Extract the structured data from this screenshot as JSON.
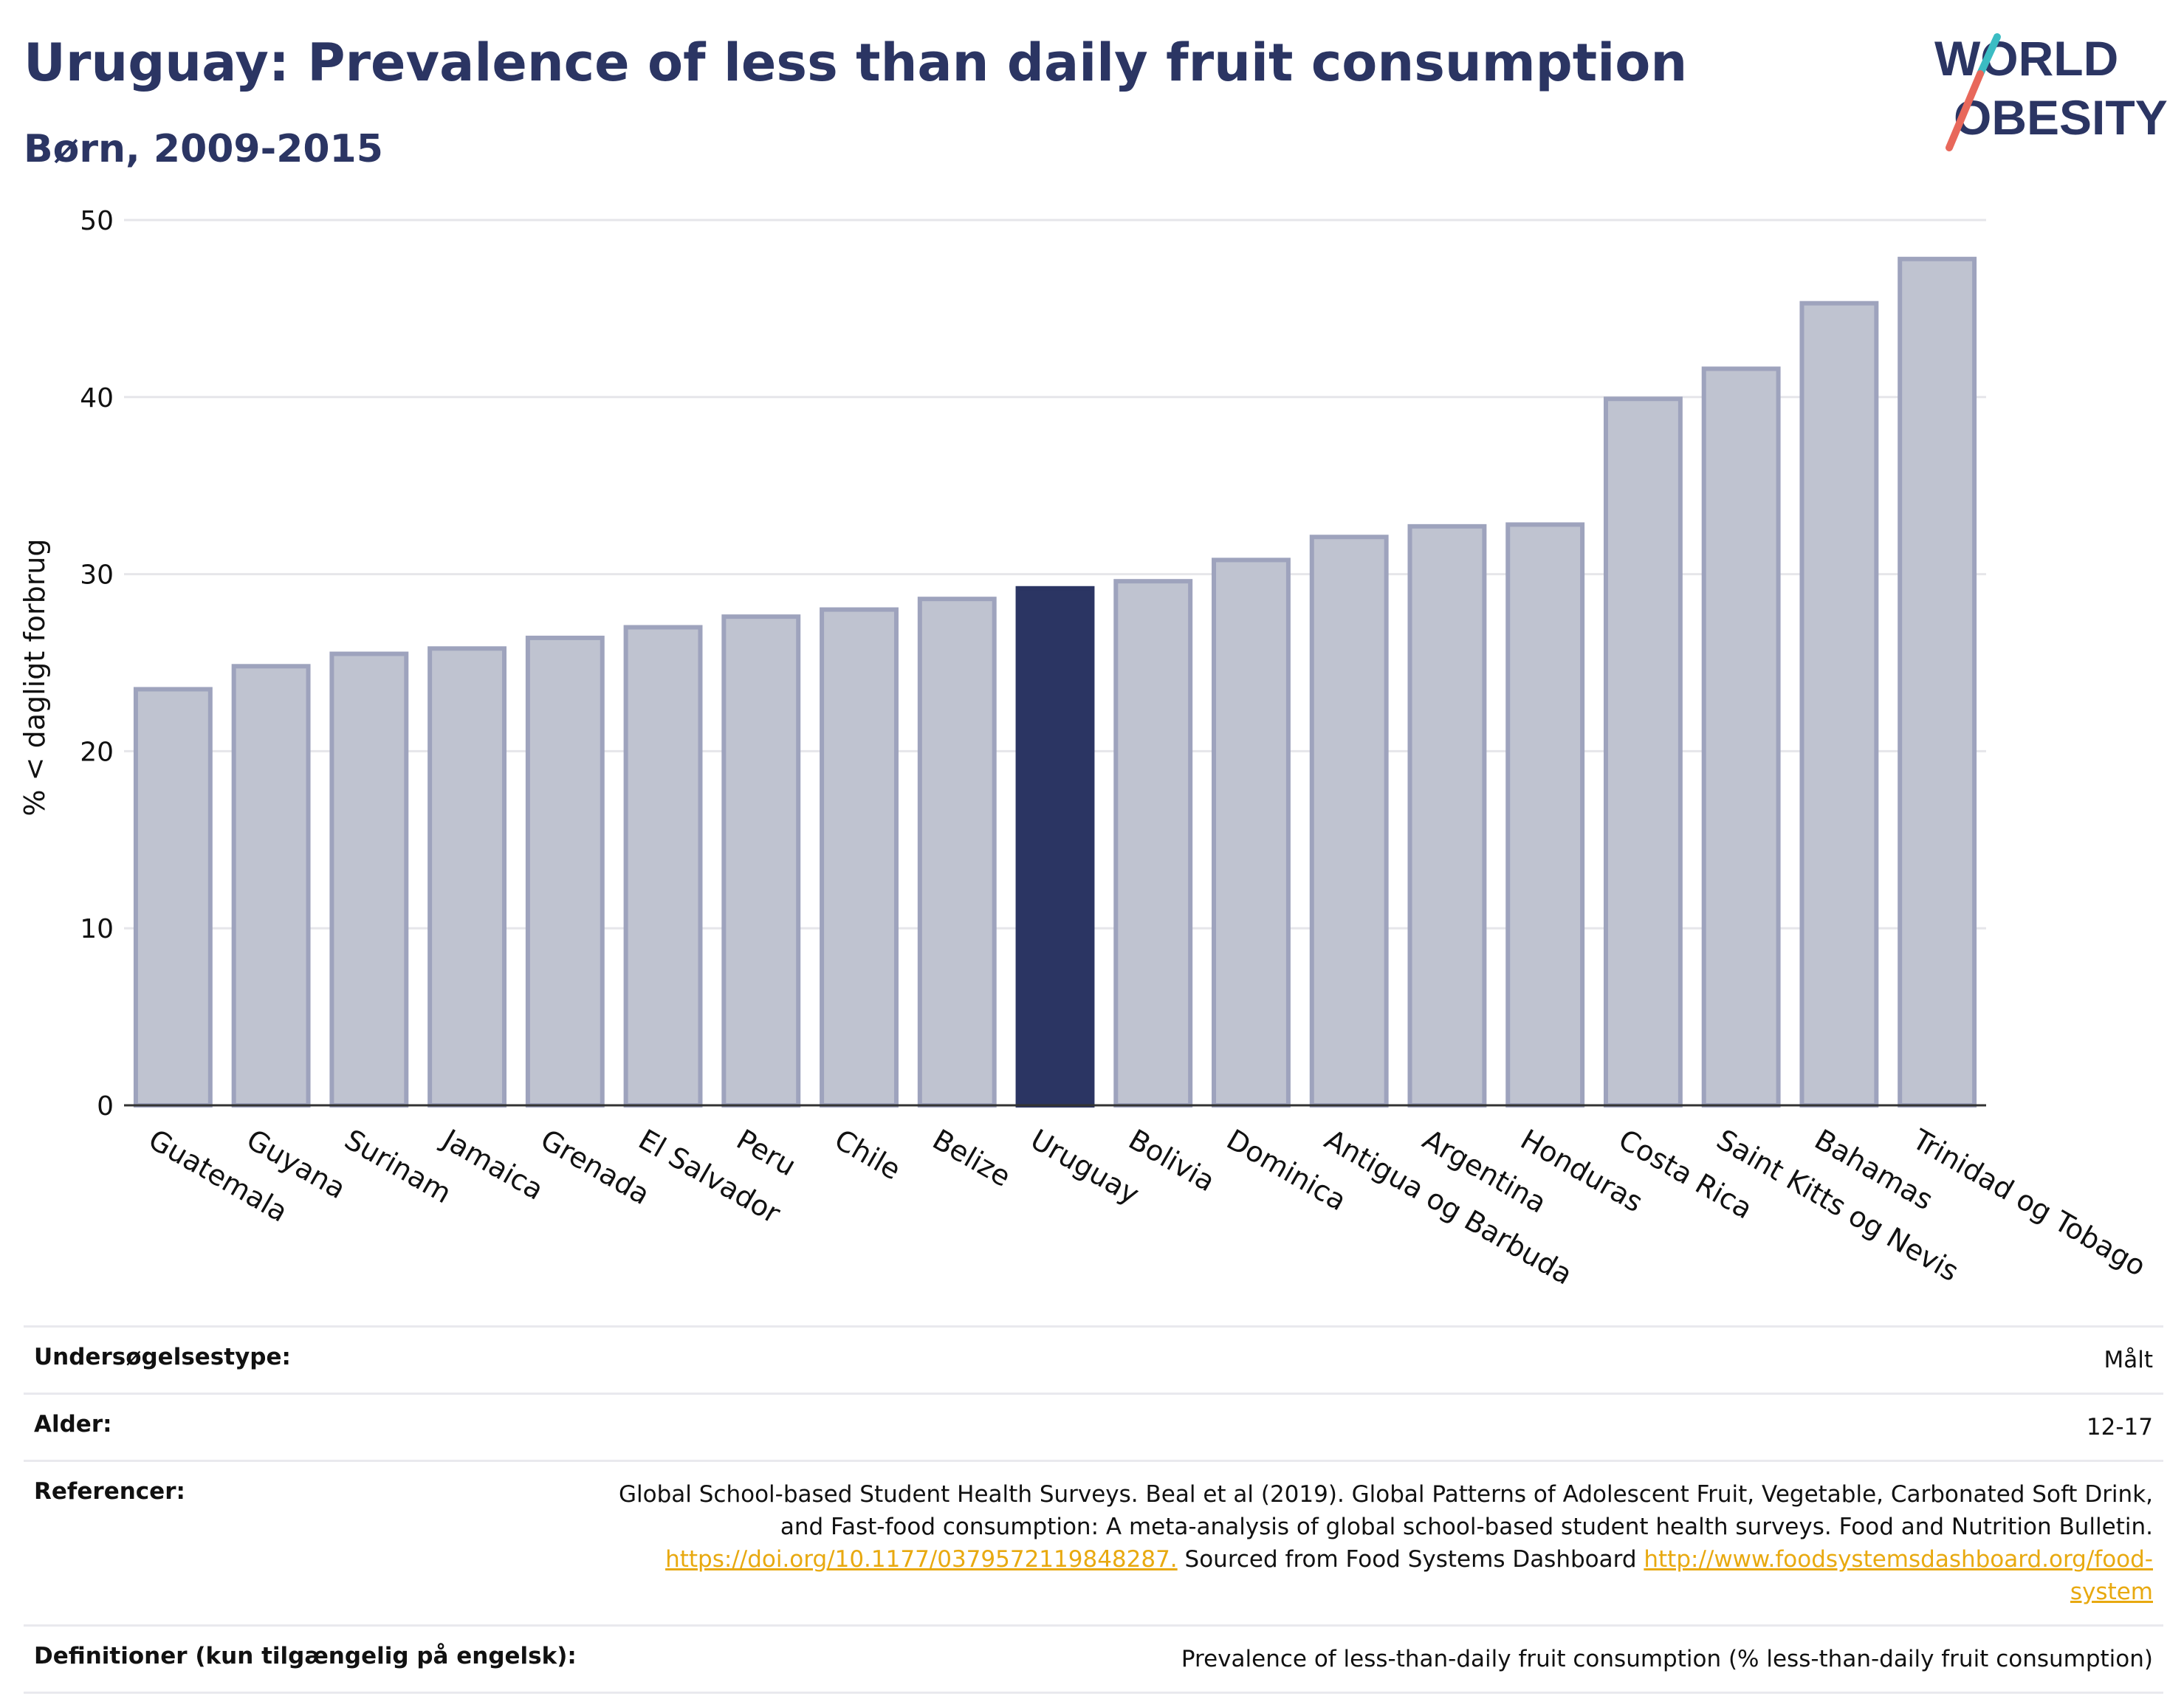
{
  "header": {
    "title": "Uruguay: Prevalence of less than daily fruit consumption",
    "subtitle": "Børn, 2009-2015"
  },
  "logo": {
    "line1": "WORLD",
    "line2": "OBESITY"
  },
  "chart_data": {
    "type": "bar",
    "ylabel": "% < dagligt forbrug",
    "xlabel": "",
    "ylim": [
      0,
      50
    ],
    "yticks": [
      0,
      10,
      20,
      30,
      40,
      50
    ],
    "grid": true,
    "highlight": "Uruguay",
    "colors": {
      "bar": "#bfc3d0",
      "bar_edge": "#9ea3bd",
      "highlight": "#2b3563"
    },
    "categories": [
      "Guatemala",
      "Guyana",
      "Surinam",
      "Jamaica",
      "Grenada",
      "El Salvador",
      "Peru",
      "Chile",
      "Belize",
      "Uruguay",
      "Bolivia",
      "Dominica",
      "Antigua og Barbuda",
      "Argentina",
      "Honduras",
      "Costa Rica",
      "Saint Kitts og Nevis",
      "Bahamas",
      "Trinidad og Tobago"
    ],
    "values": [
      23.5,
      24.8,
      25.5,
      25.8,
      26.4,
      27.0,
      27.6,
      28.0,
      28.6,
      29.2,
      29.6,
      30.8,
      32.1,
      32.7,
      32.8,
      39.9,
      41.6,
      45.3,
      47.8
    ]
  },
  "meta": {
    "survey_label": "Undersøgelsestype:",
    "survey_value": "Målt",
    "age_label": "Alder:",
    "age_value": "12-17",
    "ref_label": "Referencer:",
    "ref_text1": "Global School-based Student Health Surveys. Beal et al (2019). Global Patterns of Adolescent Fruit, Vegetable, Carbonated Soft Drink,",
    "ref_text2": "and Fast-food consumption: A meta-analysis of global school-based student health surveys. Food and Nutrition Bulletin.",
    "ref_link1": "https://doi.org/10.1177/0379572119848287.",
    "ref_text3": " Sourced from Food Systems Dashboard ",
    "ref_link2a": "http://www.foodsystemsdashboard.org/food-",
    "ref_link2b": "system",
    "def_label": "Definitioner (kun tilgængelig på engelsk):",
    "def_value": "Prevalence of less-than-daily fruit consumption (% less-than-daily fruit consumption)"
  }
}
